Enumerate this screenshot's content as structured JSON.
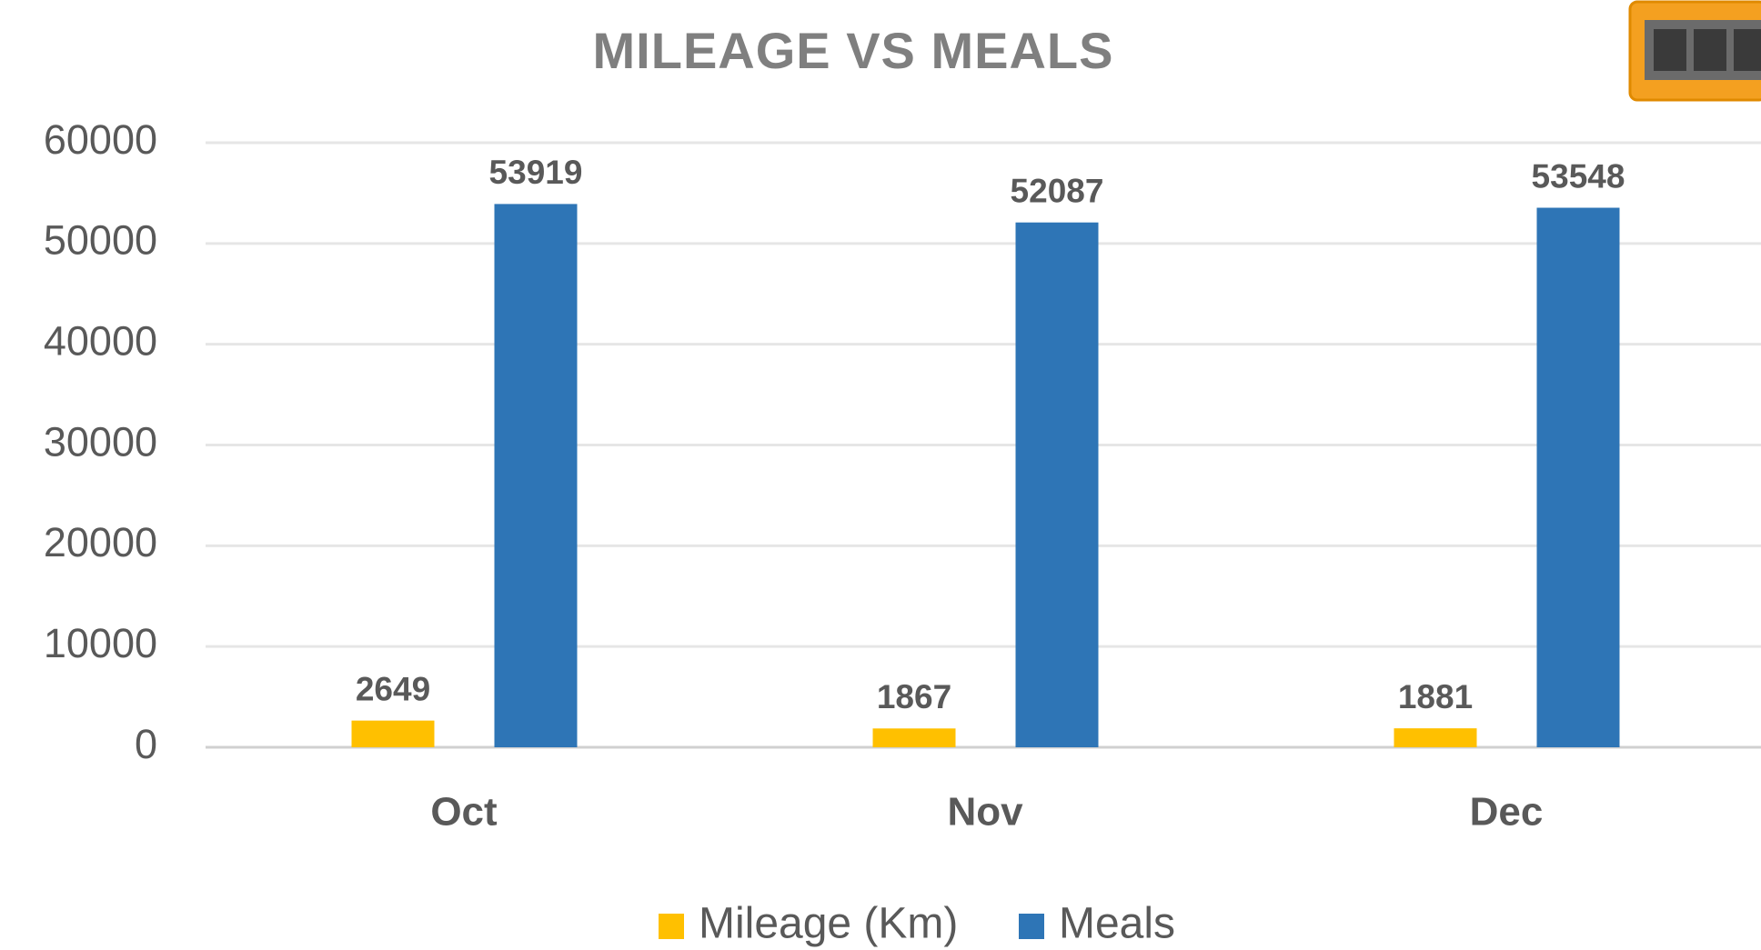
{
  "chart_data": {
    "type": "bar",
    "title": "MILEAGE VS MEALS",
    "categories": [
      "Oct",
      "Nov",
      "Dec"
    ],
    "series": [
      {
        "name": "Mileage (Km)",
        "color": "#ffc000",
        "values": [
          2649,
          1867,
          1881
        ]
      },
      {
        "name": "Meals",
        "color": "#2e75b6",
        "values": [
          53919,
          52087,
          53548
        ]
      }
    ],
    "ylim": [
      0,
      60000
    ],
    "yticks": [
      0,
      10000,
      20000,
      30000,
      40000,
      50000,
      60000
    ],
    "grid": true,
    "legend": "bottom"
  }
}
